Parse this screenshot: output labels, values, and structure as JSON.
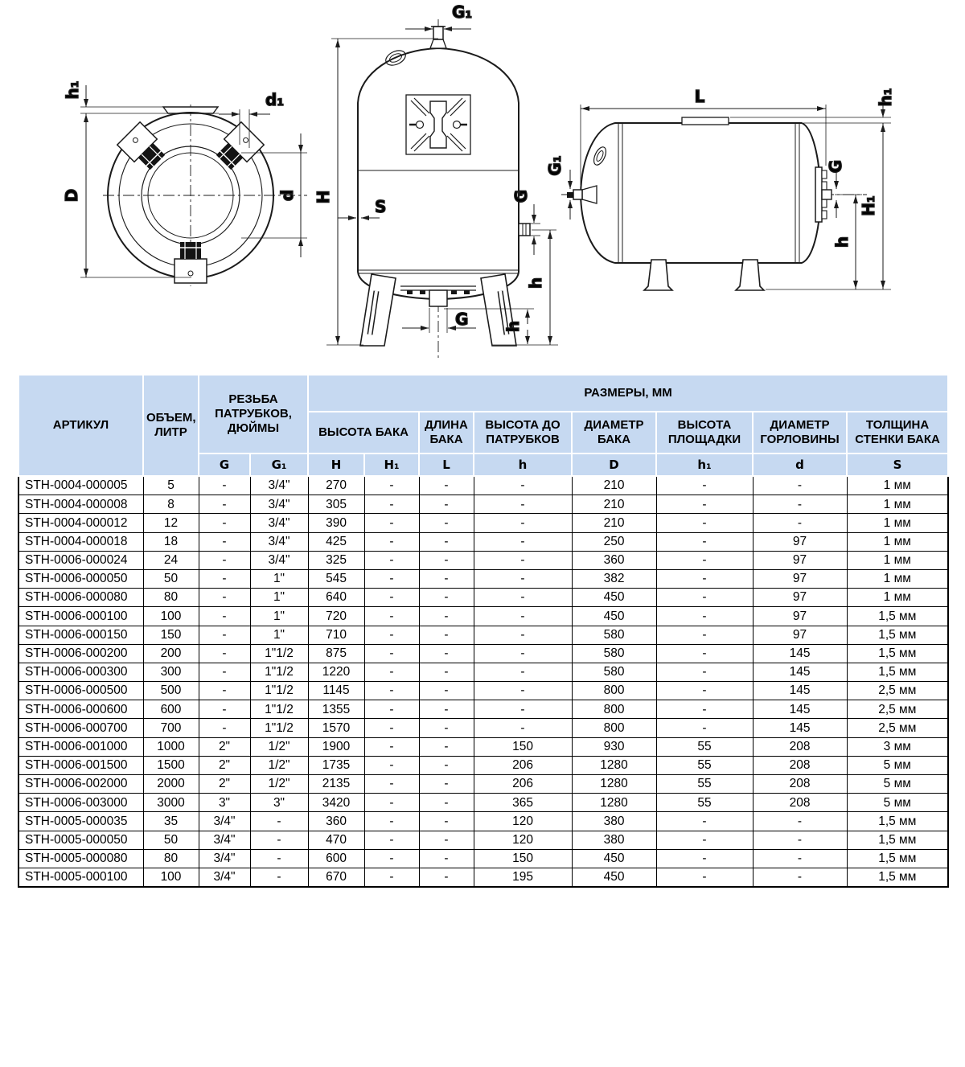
{
  "drawings": {
    "top_view": {
      "h1": "h₁",
      "D": "D",
      "d1": "d₁",
      "d": "d"
    },
    "front_view": {
      "G1": "G₁",
      "H": "H",
      "S": "S",
      "G_side": "G",
      "h_side": "h",
      "G_bottom": "G",
      "h_bottom": "h"
    },
    "side_view": {
      "L": "L",
      "h1": "h₁",
      "G1": "G₁",
      "G": "G",
      "H1": "H₁",
      "h": "h"
    }
  },
  "table": {
    "header": {
      "artikul": "АРТИКУЛ",
      "volume": "ОБЪЕМ, ЛИТР",
      "thread": "РЕЗЬБА ПАТРУБКОВ, ДЮЙМЫ",
      "sizes": "РАЗМЕРЫ, ММ",
      "groups": {
        "height": "ВЫСОТА БАКА",
        "length": "ДЛИНА БАКА",
        "to_ports": "ВЫСОТА ДО ПАТРУБКОВ",
        "diameter": "ДИАМЕТР БАКА",
        "platform": "ВЫСОТА ПЛОЩАДКИ",
        "neck": "ДИАМЕТР ГОРЛОВИНЫ",
        "wall": "ТОЛЩИНА СТЕНКИ БАКА"
      },
      "letters": [
        "G",
        "G₁",
        "H",
        "H₁",
        "L",
        "h",
        "D",
        "h₁",
        "d",
        "S"
      ]
    },
    "rows": [
      [
        "STH-0004-000005",
        "5",
        "-",
        "3/4\"",
        "270",
        "-",
        "-",
        "-",
        "210",
        "-",
        "-",
        "1 мм"
      ],
      [
        "STH-0004-000008",
        "8",
        "-",
        "3/4\"",
        "305",
        "-",
        "-",
        "-",
        "210",
        "-",
        "-",
        "1 мм"
      ],
      [
        "STH-0004-000012",
        "12",
        "-",
        "3/4\"",
        "390",
        "-",
        "-",
        "-",
        "210",
        "-",
        "-",
        "1 мм"
      ],
      [
        "STH-0004-000018",
        "18",
        "-",
        "3/4\"",
        "425",
        "-",
        "-",
        "-",
        "250",
        "-",
        "97",
        "1 мм"
      ],
      [
        "STH-0006-000024",
        "24",
        "-",
        "3/4\"",
        "325",
        "-",
        "-",
        "-",
        "360",
        "-",
        "97",
        "1 мм"
      ],
      [
        "STH-0006-000050",
        "50",
        "-",
        "1\"",
        "545",
        "-",
        "-",
        "-",
        "382",
        "-",
        "97",
        "1 мм"
      ],
      [
        "STH-0006-000080",
        "80",
        "-",
        "1\"",
        "640",
        "-",
        "-",
        "-",
        "450",
        "-",
        "97",
        "1 мм"
      ],
      [
        "STH-0006-000100",
        "100",
        "-",
        "1\"",
        "720",
        "-",
        "-",
        "-",
        "450",
        "-",
        "97",
        "1,5 мм"
      ],
      [
        "STH-0006-000150",
        "150",
        "-",
        "1\"",
        "710",
        "-",
        "-",
        "-",
        "580",
        "-",
        "97",
        "1,5 мм"
      ],
      [
        "STH-0006-000200",
        "200",
        "-",
        "1\"1/2",
        "875",
        "-",
        "-",
        "-",
        "580",
        "-",
        "145",
        "1,5 мм"
      ],
      [
        "STH-0006-000300",
        "300",
        "-",
        "1\"1/2",
        "1220",
        "-",
        "-",
        "-",
        "580",
        "-",
        "145",
        "1,5 мм"
      ],
      [
        "STH-0006-000500",
        "500",
        "-",
        "1\"1/2",
        "1145",
        "-",
        "-",
        "-",
        "800",
        "-",
        "145",
        "2,5 мм"
      ],
      [
        "STH-0006-000600",
        "600",
        "-",
        "1\"1/2",
        "1355",
        "-",
        "-",
        "-",
        "800",
        "-",
        "145",
        "2,5 мм"
      ],
      [
        "STH-0006-000700",
        "700",
        "-",
        "1\"1/2",
        "1570",
        "-",
        "-",
        "-",
        "800",
        "-",
        "145",
        "2,5 мм"
      ],
      [
        "STH-0006-001000",
        "1000",
        "2\"",
        "1/2\"",
        "1900",
        "-",
        "-",
        "150",
        "930",
        "55",
        "208",
        "3 мм"
      ],
      [
        "STH-0006-001500",
        "1500",
        "2\"",
        "1/2\"",
        "1735",
        "-",
        "-",
        "206",
        "1280",
        "55",
        "208",
        "5 мм"
      ],
      [
        "STH-0006-002000",
        "2000",
        "2\"",
        "1/2\"",
        "2135",
        "-",
        "-",
        "206",
        "1280",
        "55",
        "208",
        "5 мм"
      ],
      [
        "STH-0006-003000",
        "3000",
        "3\"",
        "3\"",
        "3420",
        "-",
        "-",
        "365",
        "1280",
        "55",
        "208",
        "5 мм"
      ],
      [
        "STH-0005-000035",
        "35",
        "3/4\"",
        "-",
        "360",
        "-",
        "-",
        "120",
        "380",
        "-",
        "-",
        "1,5 мм"
      ],
      [
        "STH-0005-000050",
        "50",
        "3/4\"",
        "-",
        "470",
        "-",
        "-",
        "120",
        "380",
        "-",
        "-",
        "1,5 мм"
      ],
      [
        "STH-0005-000080",
        "80",
        "3/4\"",
        "-",
        "600",
        "-",
        "-",
        "150",
        "450",
        "-",
        "-",
        "1,5 мм"
      ],
      [
        "STH-0005-000100",
        "100",
        "3/4\"",
        "-",
        "670",
        "-",
        "-",
        "195",
        "450",
        "-",
        "-",
        "1,5 мм"
      ]
    ]
  }
}
